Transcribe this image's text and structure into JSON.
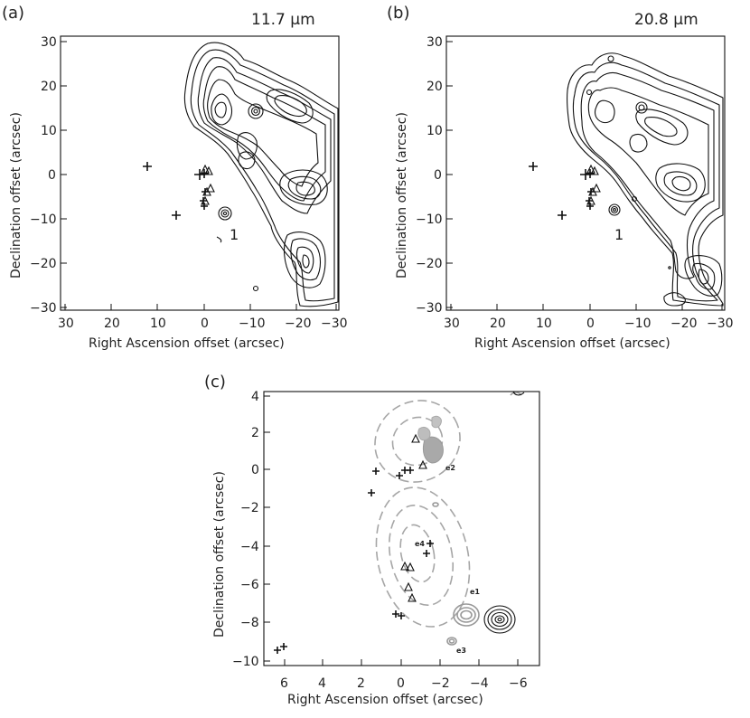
{
  "figure": {
    "panels": [
      {
        "id": "a",
        "label": "(a)",
        "wavelength": "11.7 μm",
        "xlabel": "Right Ascension offset (arcsec)",
        "ylabel": "Declination offset (arcsec)",
        "xticks": [
          "30",
          "20",
          "10",
          "0",
          "−10",
          "−20",
          "−30"
        ],
        "yticks": [
          "30",
          "20",
          "10",
          "0",
          "−10",
          "−20",
          "−30"
        ],
        "source_label": "1"
      },
      {
        "id": "b",
        "label": "(b)",
        "wavelength": "20.8 μm",
        "xlabel": "Right Ascension offset (arcsec)",
        "ylabel": "Declination offset (arcsec)",
        "xticks": [
          "30",
          "20",
          "10",
          "0",
          "−10",
          "−20",
          "−30"
        ],
        "yticks": [
          "30",
          "20",
          "10",
          "0",
          "−10",
          "−20",
          "−30"
        ],
        "source_label": "1"
      },
      {
        "id": "c",
        "label": "(c)",
        "xlabel": "Right Ascension offset (arcsec)",
        "ylabel": "Declination offset (arcsec)",
        "xticks": [
          "6",
          "4",
          "2",
          "0",
          "−2",
          "−4",
          "−6"
        ],
        "yticks": [
          "4",
          "2",
          "0",
          "−2",
          "−4",
          "−6",
          "−8",
          "−10"
        ],
        "sources": [
          "e1",
          "e2",
          "e3",
          "e4"
        ]
      }
    ]
  }
}
